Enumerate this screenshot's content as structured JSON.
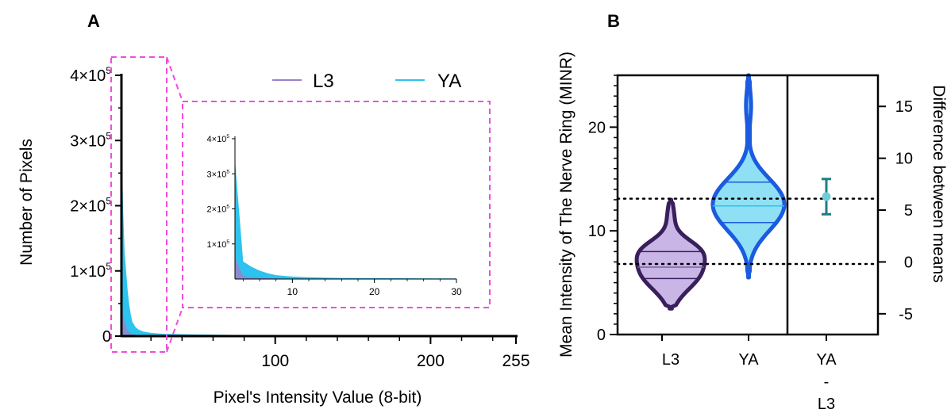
{
  "panel_a": {
    "letter": "A",
    "ylabel": "Number of Pixels",
    "xlabel": "Pixel's Intensity Value (8-bit)",
    "y_ticks": [
      {
        "value": 0,
        "base": "0",
        "exp": ""
      },
      {
        "value": 100000,
        "base": "1×10",
        "exp": "5"
      },
      {
        "value": 200000,
        "base": "2×10",
        "exp": "5"
      },
      {
        "value": 300000,
        "base": "3×10",
        "exp": "5"
      },
      {
        "value": 400000,
        "base": "4×10",
        "exp": "5"
      }
    ],
    "x_ticks": [
      "100",
      "200",
      "255"
    ],
    "legend": [
      {
        "label": "L3",
        "color": "#9b82c9"
      },
      {
        "label": "YA",
        "color": "#2cc3ee"
      }
    ],
    "inset": {
      "y_ticks": [
        {
          "value": 100000,
          "base": "1×10",
          "exp": "5"
        },
        {
          "value": 200000,
          "base": "2×10",
          "exp": "5"
        },
        {
          "value": 300000,
          "base": "3×10",
          "exp": "5"
        },
        {
          "value": 400000,
          "base": "4×10",
          "exp": "5"
        }
      ],
      "x_ticks": [
        "10",
        "20",
        "30"
      ]
    },
    "highlight_color": "#f04ddb"
  },
  "panel_b": {
    "letter": "B",
    "ylabel": "Mean Intensity of The Nerve Ring (MINR)",
    "y2label": "Difference between means",
    "y_ticks": [
      "0",
      "10",
      "20"
    ],
    "y2_ticks": [
      "15",
      "10",
      "5",
      "0",
      "-5"
    ],
    "x_labels": [
      "L3",
      "YA"
    ],
    "diff_label": [
      "YA",
      "-",
      "L3"
    ],
    "colors": {
      "L3": "#3a1f5c",
      "YA": "#1a5be0",
      "diff": "#1f7c86",
      "diff_point": "#70cdd4"
    }
  },
  "chart_data": [
    {
      "type": "area",
      "xlim": [
        1,
        255
      ],
      "ylim": [
        0,
        400000
      ],
      "series": [
        {
          "name": "L3",
          "x": [
            1,
            2,
            3,
            4,
            5,
            6,
            7,
            8,
            10,
            12,
            15,
            20,
            25,
            30,
            50,
            100,
            150,
            200,
            255
          ],
          "values": [
            60000,
            35000,
            22000,
            14000,
            9000,
            6000,
            4000,
            3000,
            2000,
            1500,
            1000,
            700,
            500,
            400,
            200,
            50,
            20,
            10,
            5
          ]
        },
        {
          "name": "YA",
          "x": [
            1,
            2,
            3,
            4,
            5,
            6,
            7,
            8,
            10,
            12,
            15,
            20,
            25,
            30,
            50,
            100,
            150,
            200,
            255
          ],
          "values": [
            340000,
            200000,
            130000,
            100000,
            70000,
            48000,
            33000,
            22000,
            14000,
            10000,
            7000,
            5000,
            4000,
            3500,
            2500,
            1000,
            500,
            300,
            200
          ]
        }
      ]
    },
    {
      "type": "violin",
      "ylim": [
        0,
        25
      ],
      "y2lim": [
        -7,
        18
      ],
      "series": [
        {
          "name": "L3",
          "min": 2.5,
          "max": 13,
          "q1": 5.4,
          "median": 6.5,
          "q3": 8.0
        },
        {
          "name": "YA",
          "min": 5.5,
          "max": 25,
          "q1": 10.8,
          "median": 12.4,
          "q3": 14.7
        }
      ],
      "difference": {
        "label": "YA - L3",
        "mean": 6.3,
        "ci": [
          4.6,
          8.0
        ]
      },
      "reference_lines": [
        6.8,
        13.1
      ]
    }
  ]
}
